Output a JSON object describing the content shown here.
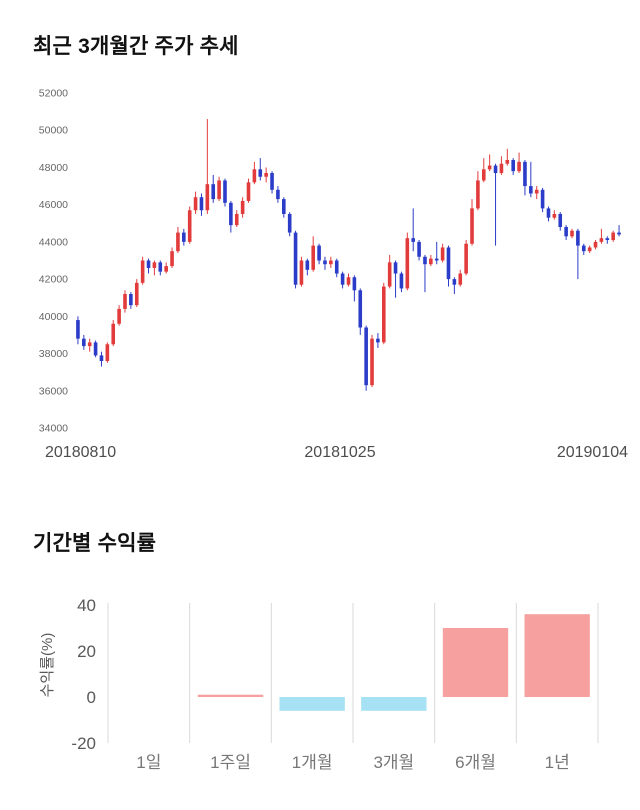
{
  "chart_data": [
    {
      "type": "candlestick",
      "title": "최근 3개월간 주가 추세",
      "ylim": [
        34000,
        52000
      ],
      "yticks": [
        52000,
        50000,
        48000,
        46000,
        44000,
        42000,
        40000,
        38000,
        36000,
        34000
      ],
      "xticklabels": [
        "20180810",
        "20181025",
        "20190104"
      ],
      "up_color": "#e23b3b",
      "down_color": "#2b3cc8",
      "tick_color": "#666666",
      "date_color": "#4d4d4d",
      "candles": [
        [
          39800,
          40000,
          38500,
          38800
        ],
        [
          38800,
          39000,
          38200,
          38400
        ],
        [
          38400,
          38800,
          38100,
          38600
        ],
        [
          38600,
          38700,
          37800,
          37900
        ],
        [
          37900,
          38100,
          37300,
          37600
        ],
        [
          37600,
          38600,
          37500,
          38500
        ],
        [
          38500,
          39800,
          38400,
          39600
        ],
        [
          39600,
          40600,
          39500,
          40400
        ],
        [
          40400,
          41400,
          40200,
          41200
        ],
        [
          41200,
          41300,
          40400,
          40600
        ],
        [
          40600,
          42000,
          40500,
          41800
        ],
        [
          41800,
          43200,
          41700,
          43000
        ],
        [
          43000,
          43100,
          42300,
          42600
        ],
        [
          42600,
          43000,
          42200,
          42900
        ],
        [
          42900,
          43000,
          42200,
          42400
        ],
        [
          42400,
          42900,
          42300,
          42700
        ],
        [
          42700,
          43700,
          42600,
          43500
        ],
        [
          43500,
          44800,
          43400,
          44500
        ],
        [
          44500,
          44700,
          43800,
          44000
        ],
        [
          44000,
          45900,
          43900,
          45700
        ],
        [
          45700,
          46700,
          45500,
          46400
        ],
        [
          46400,
          46600,
          45400,
          45700
        ],
        [
          45700,
          50600,
          45500,
          47100
        ],
        [
          47100,
          47600,
          46100,
          46300
        ],
        [
          46300,
          47500,
          46200,
          47300
        ],
        [
          47300,
          47400,
          45900,
          46100
        ],
        [
          46100,
          46200,
          44500,
          44900
        ],
        [
          44900,
          45700,
          44800,
          45500
        ],
        [
          45500,
          46400,
          45300,
          46200
        ],
        [
          46200,
          47400,
          46100,
          47200
        ],
        [
          47200,
          48300,
          47100,
          47900
        ],
        [
          47900,
          48500,
          47300,
          47500
        ],
        [
          47500,
          48000,
          47200,
          47700
        ],
        [
          47700,
          47800,
          46600,
          46800
        ],
        [
          46800,
          47000,
          46100,
          46300
        ],
        [
          46300,
          46400,
          45300,
          45500
        ],
        [
          45500,
          45600,
          44300,
          44500
        ],
        [
          44500,
          44600,
          41500,
          41700
        ],
        [
          41700,
          43200,
          41600,
          43000
        ],
        [
          43000,
          43100,
          42200,
          42500
        ],
        [
          42500,
          44300,
          42400,
          43800
        ],
        [
          43800,
          43900,
          42800,
          43000
        ],
        [
          43000,
          43200,
          42500,
          42800
        ],
        [
          42800,
          43200,
          42600,
          43000
        ],
        [
          43000,
          43100,
          42100,
          42300
        ],
        [
          42300,
          42400,
          41500,
          41700
        ],
        [
          41700,
          42300,
          41600,
          42100
        ],
        [
          42100,
          42200,
          40800,
          41400
        ],
        [
          41400,
          41500,
          39000,
          39400
        ],
        [
          39400,
          39500,
          36000,
          36300
        ],
        [
          36300,
          39000,
          36200,
          38800
        ],
        [
          38800,
          39100,
          38300,
          38600
        ],
        [
          38600,
          41800,
          38500,
          41600
        ],
        [
          41600,
          43300,
          41500,
          42900
        ],
        [
          42900,
          43000,
          41000,
          42300
        ],
        [
          42300,
          42400,
          41300,
          41500
        ],
        [
          41500,
          44500,
          41400,
          44200
        ],
        [
          44200,
          45800,
          43500,
          44000
        ],
        [
          44000,
          44100,
          43000,
          43200
        ],
        [
          43200,
          43300,
          41300,
          42800
        ],
        [
          42800,
          43300,
          42700,
          43100
        ],
        [
          43100,
          44000,
          42800,
          43000
        ],
        [
          43000,
          43900,
          42900,
          43700
        ],
        [
          43700,
          43800,
          41600,
          42000
        ],
        [
          42000,
          42100,
          41200,
          41700
        ],
        [
          41700,
          42500,
          41600,
          42300
        ],
        [
          42300,
          44100,
          42200,
          43900
        ],
        [
          43900,
          46300,
          43800,
          45800
        ],
        [
          45800,
          47800,
          45700,
          47300
        ],
        [
          47300,
          48500,
          47200,
          47900
        ],
        [
          47900,
          48700,
          47800,
          48100
        ],
        [
          48100,
          48200,
          43800,
          47700
        ],
        [
          47700,
          48600,
          47600,
          48200
        ],
        [
          48200,
          49000,
          48100,
          48400
        ],
        [
          48400,
          48500,
          47600,
          47800
        ],
        [
          47800,
          48800,
          47700,
          48300
        ],
        [
          48300,
          48400,
          46500,
          47000
        ],
        [
          47000,
          48300,
          46400,
          46600
        ],
        [
          46600,
          47000,
          46300,
          46800
        ],
        [
          46800,
          46900,
          45600,
          45800
        ],
        [
          45800,
          45900,
          45100,
          45300
        ],
        [
          45300,
          45700,
          45200,
          45500
        ],
        [
          45500,
          45600,
          44600,
          44800
        ],
        [
          44800,
          44900,
          44100,
          44300
        ],
        [
          44300,
          44700,
          44200,
          44600
        ],
        [
          44600,
          44700,
          42000,
          43800
        ],
        [
          43800,
          43900,
          43300,
          43500
        ],
        [
          43500,
          43800,
          43400,
          43700
        ],
        [
          43700,
          44100,
          43600,
          44000
        ],
        [
          44000,
          44700,
          43900,
          44200
        ],
        [
          44200,
          44300,
          43900,
          44100
        ],
        [
          44100,
          44600,
          44000,
          44500
        ],
        [
          44500,
          44900,
          44300,
          44400
        ]
      ]
    },
    {
      "type": "bar",
      "title": "기간별 수익률",
      "ylabel": "수익률(%)",
      "categories": [
        "1일",
        "1주일",
        "1개월",
        "3개월",
        "6개월",
        "1년"
      ],
      "values": [
        0,
        1,
        -6,
        -6,
        30,
        36
      ],
      "ylim": [
        -20,
        40
      ],
      "yticks": [
        40,
        20,
        0,
        -20
      ],
      "positive_color": "#f7a0a0",
      "negative_color": "#a6e1f4",
      "grid_color": "#d9d9d9",
      "tick_color": "#595959",
      "category_color": "#777777",
      "grid": "vertical"
    }
  ]
}
